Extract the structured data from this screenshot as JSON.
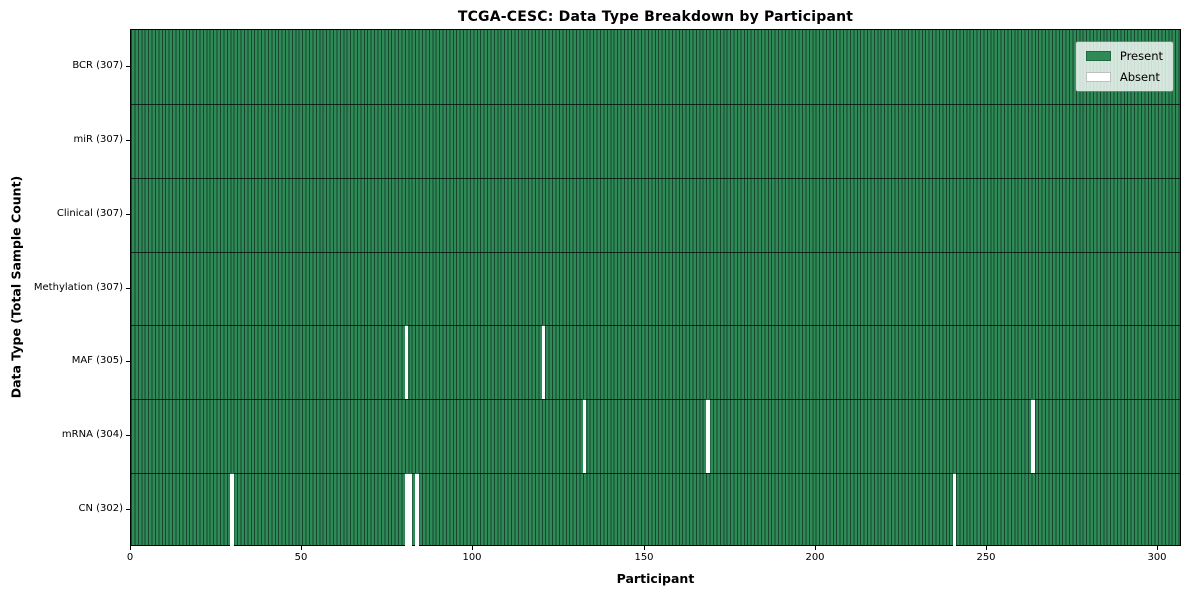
{
  "figure": {
    "title": "TCGA-CESC: Data Type Breakdown by Participant",
    "xlabel": "Participant",
    "ylabel": "Data Type (Total Sample Count)"
  },
  "chart_data": {
    "type": "heatmap",
    "title": "TCGA-CESC: Data Type Breakdown by Participant",
    "xlabel": "Participant",
    "ylabel": "Data Type (Total Sample Count)",
    "xlim": [
      0,
      307
    ],
    "n_participants": 307,
    "x_ticks": [
      0,
      50,
      100,
      150,
      200,
      250,
      300
    ],
    "grid": false,
    "rows": [
      {
        "label": "BCR (307)",
        "data_type": "BCR",
        "total": 307,
        "absent_participants": []
      },
      {
        "label": "miR (307)",
        "data_type": "miR",
        "total": 307,
        "absent_participants": []
      },
      {
        "label": "Clinical (307)",
        "data_type": "Clinical",
        "total": 307,
        "absent_participants": []
      },
      {
        "label": "Methylation (307)",
        "data_type": "Methylation",
        "total": 307,
        "absent_participants": []
      },
      {
        "label": "MAF (305)",
        "data_type": "MAF",
        "total": 305,
        "absent_participants": [
          80,
          120
        ]
      },
      {
        "label": "mRNA (304)",
        "data_type": "mRNA",
        "total": 304,
        "absent_participants": [
          132,
          168,
          263
        ]
      },
      {
        "label": "CN (302)",
        "data_type": "CN",
        "total": 302,
        "absent_participants": [
          29,
          80,
          81,
          83,
          240
        ]
      }
    ],
    "legend": {
      "position": "upper right",
      "entries": [
        {
          "label": "Present",
          "color": "#2e8b57"
        },
        {
          "label": "Absent",
          "color": "#ffffff"
        }
      ]
    },
    "colors": {
      "present_fill": "#2e8b57",
      "bar_edge": "#18452e",
      "absent_fill": "#ffffff",
      "divider": "rgba(0,0,0,0.7)",
      "spine": "#000000"
    }
  }
}
